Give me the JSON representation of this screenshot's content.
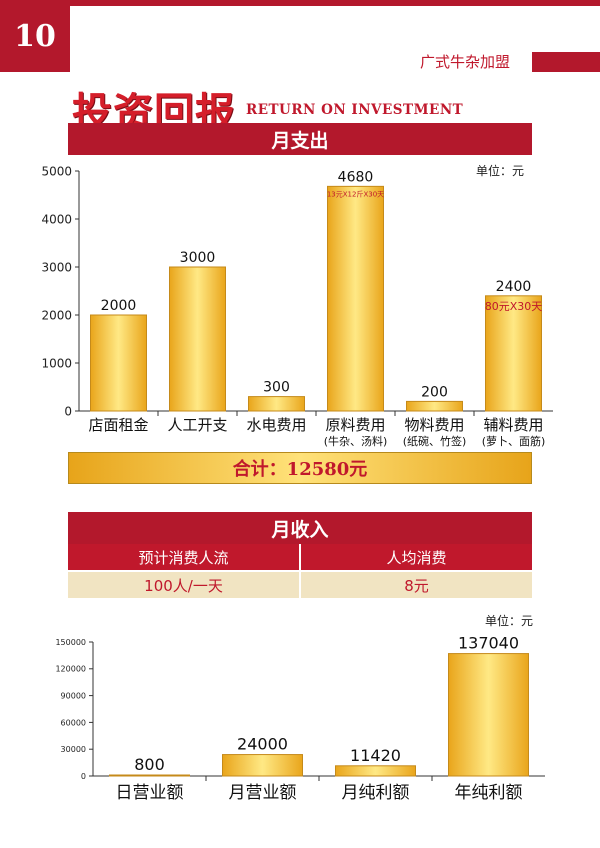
{
  "page_number": "10",
  "brand": "广式牛杂加盟",
  "title": "投资回报",
  "subtitle": "RETURN ON INVESTMENT",
  "expense_section": {
    "title": "月支出",
    "unit": "单位：元",
    "total": "合计：12580元"
  },
  "income_section": {
    "title": "月收入",
    "unit": "单位：元",
    "table": {
      "headers": [
        "预计消费人流",
        "人均消费"
      ],
      "values": [
        "100人/一天",
        "8元"
      ]
    }
  },
  "chart_data": [
    {
      "type": "bar",
      "title": "",
      "categories": [
        "店面租金",
        "人工开支",
        "水电费用",
        "原料费用",
        "物料费用",
        "辅料费用"
      ],
      "category_notes": [
        "",
        "",
        "",
        "(牛杂、汤料)",
        "(纸碗、竹签)",
        "(萝卜、面筋)"
      ],
      "values": [
        2000,
        3000,
        300,
        4680,
        200,
        2400
      ],
      "data_labels": [
        "2000",
        "3000",
        "300",
        "4680",
        "200",
        "2400"
      ],
      "annotations": [
        "",
        "",
        "",
        "13元X12斤X30天",
        "",
        "80元X30天"
      ],
      "yticks": [
        0,
        1000,
        2000,
        3000,
        4000,
        5000
      ],
      "ylim": [
        0,
        5000
      ],
      "xlabel": "",
      "ylabel": "",
      "grid": false,
      "colors": {
        "bar_dark": "#e9a51b",
        "bar_light": "#ffe985",
        "bar_border": "#c58a1a",
        "annotation": "#c0182c"
      }
    },
    {
      "type": "bar",
      "title": "",
      "categories": [
        "日营业额",
        "月营业额",
        "月纯利额",
        "年纯利额"
      ],
      "values": [
        800,
        24000,
        11420,
        137040
      ],
      "data_labels": [
        "800",
        "24000",
        "11420",
        "137040"
      ],
      "yticks": [
        0,
        30000,
        60000,
        90000,
        120000,
        150000
      ],
      "ylim": [
        0,
        150000
      ],
      "xlabel": "",
      "ylabel": "",
      "grid": false,
      "colors": {
        "bar_dark": "#e9a51b",
        "bar_light": "#ffe985",
        "bar_border": "#c58a1a"
      }
    }
  ]
}
